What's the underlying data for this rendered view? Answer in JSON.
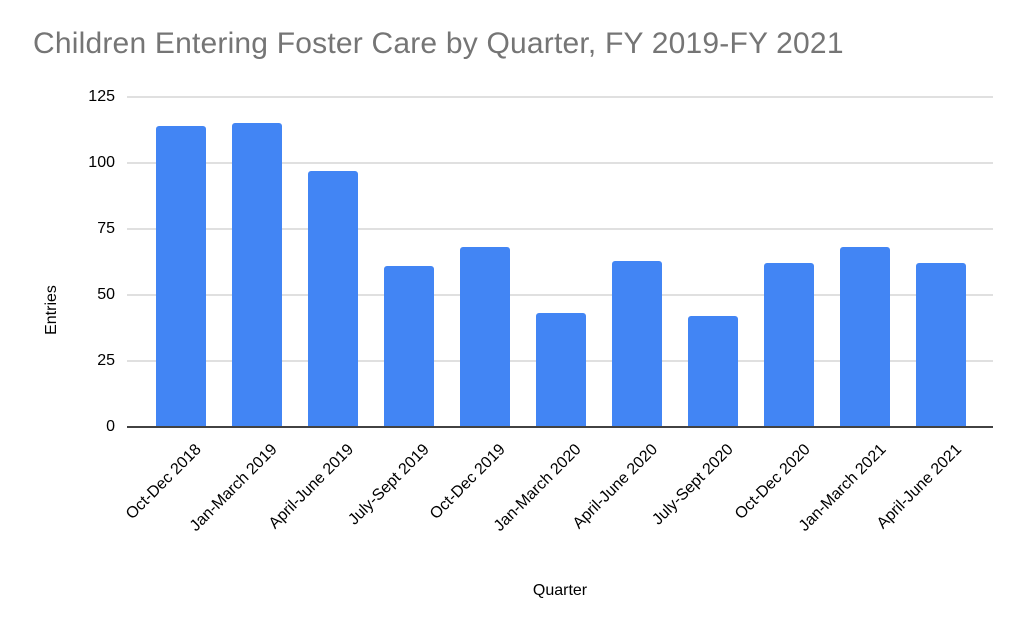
{
  "chart_data": {
    "type": "bar",
    "title": "Children Entering Foster Care by Quarter, FY 2019-FY 2021",
    "xlabel": "Quarter",
    "ylabel": "Entries",
    "categories": [
      "Oct-Dec 2018",
      "Jan-March 2019",
      "April-June 2019",
      "July-Sept 2019",
      "Oct-Dec 2019",
      "Jan-March 2020",
      "April-June 2020",
      "July-Sept 2020",
      "Oct-Dec 2020",
      "Jan-March 2021",
      "April-June 2021"
    ],
    "values": [
      114,
      115,
      97,
      61,
      68,
      43,
      63,
      42,
      62,
      68,
      62
    ],
    "ylim": [
      0,
      125
    ],
    "yticks": [
      0,
      25,
      50,
      75,
      100,
      125
    ],
    "grid": true,
    "legend": "none",
    "colors": {
      "bar": "#4285f4",
      "title_text": "#757575",
      "gridline": "#e0e0e0",
      "axis_line": "#424242",
      "tick_label": "#000000",
      "background": "#ffffff"
    }
  }
}
